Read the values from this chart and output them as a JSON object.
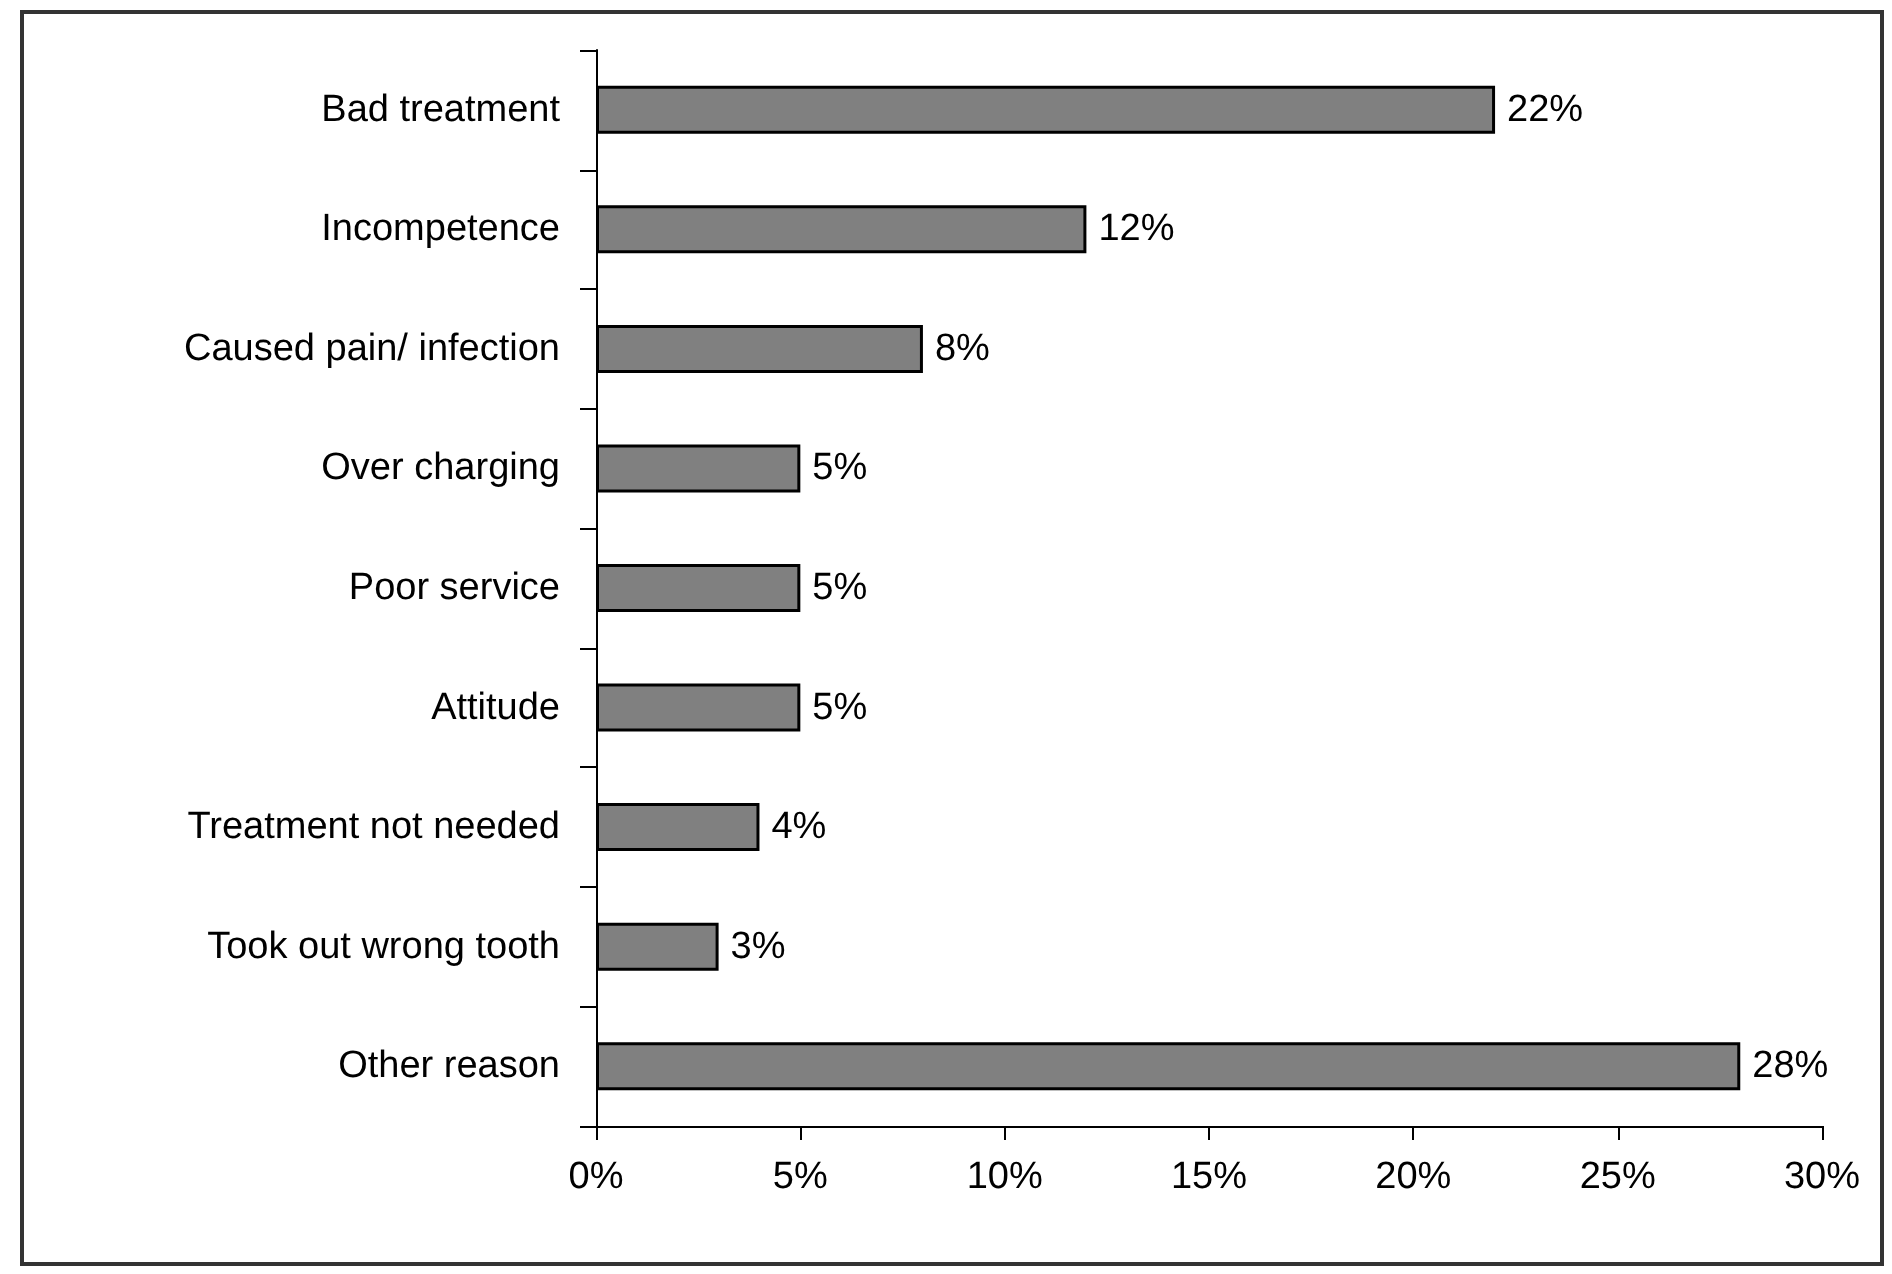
{
  "chart_data": {
    "type": "bar",
    "orientation": "horizontal",
    "categories": [
      "Bad treatment",
      "Incompetence",
      "Caused pain/ infection",
      "Over charging",
      "Poor service",
      "Attitude",
      "Treatment not needed",
      "Took out wrong tooth",
      "Other reason"
    ],
    "values": [
      22,
      12,
      8,
      5,
      5,
      5,
      4,
      3,
      28
    ],
    "value_labels": [
      "22%",
      "12%",
      "8%",
      "5%",
      "5%",
      "5%",
      "4%",
      "3%",
      "28%"
    ],
    "color": "#808080",
    "xlim": [
      0,
      30
    ],
    "xticks": [
      {
        "value": 0,
        "label": "0%"
      },
      {
        "value": 5,
        "label": "5%"
      },
      {
        "value": 10,
        "label": "10%"
      },
      {
        "value": 15,
        "label": "15%"
      },
      {
        "value": 20,
        "label": "20%"
      },
      {
        "value": 25,
        "label": "25%"
      },
      {
        "value": 30,
        "label": "30%"
      }
    ]
  }
}
